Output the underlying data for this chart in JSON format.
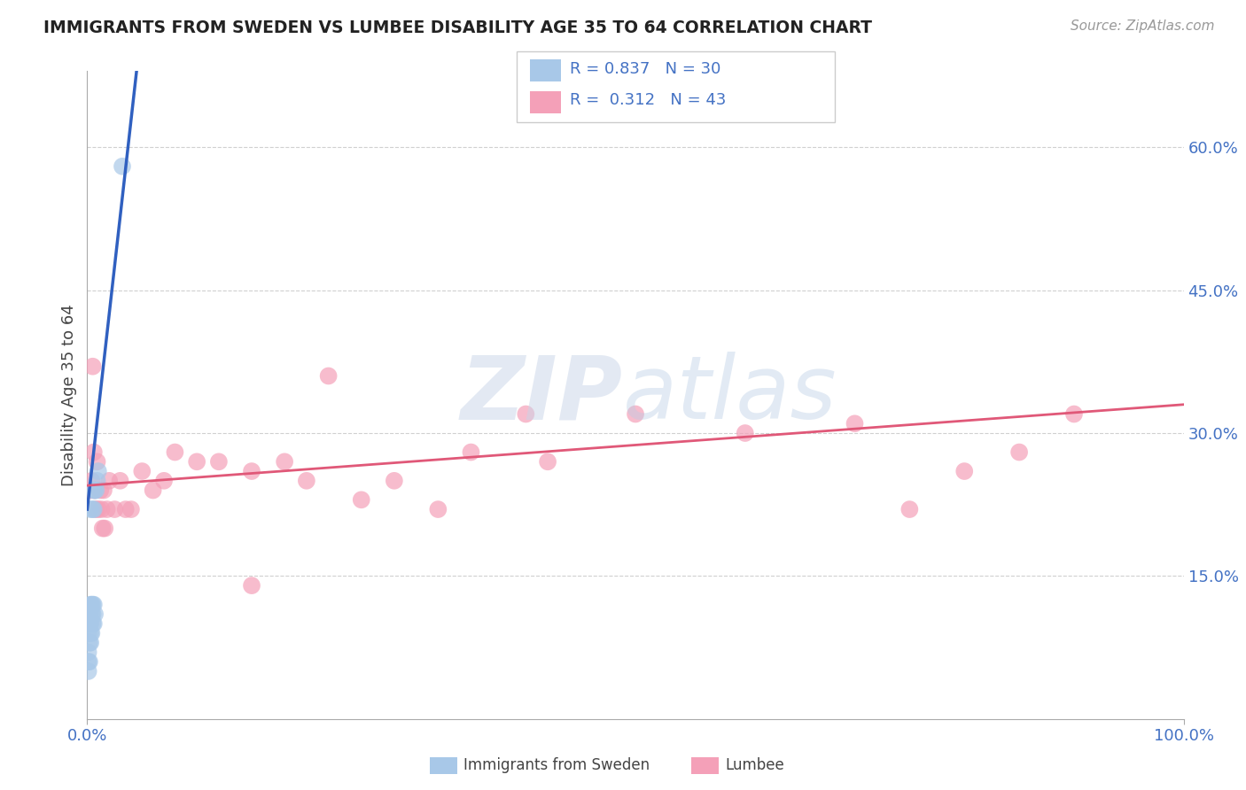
{
  "title": "IMMIGRANTS FROM SWEDEN VS LUMBEE DISABILITY AGE 35 TO 64 CORRELATION CHART",
  "source": "Source: ZipAtlas.com",
  "ylabel": "Disability Age 35 to 64",
  "ytick_labels": [
    "15.0%",
    "30.0%",
    "45.0%",
    "60.0%"
  ],
  "ytick_values": [
    0.15,
    0.3,
    0.45,
    0.6
  ],
  "xlim": [
    0.0,
    1.0
  ],
  "ylim": [
    0.0,
    0.68
  ],
  "sweden_color": "#a8c8e8",
  "lumbee_color": "#f4a0b8",
  "sweden_line_color": "#3060c0",
  "lumbee_line_color": "#e05878",
  "background_color": "#ffffff",
  "grid_color": "#d0d0d0",
  "sweden_scatter_x": [
    0.001,
    0.001,
    0.001,
    0.001,
    0.002,
    0.002,
    0.002,
    0.002,
    0.003,
    0.003,
    0.003,
    0.003,
    0.003,
    0.004,
    0.004,
    0.004,
    0.005,
    0.005,
    0.005,
    0.005,
    0.006,
    0.006,
    0.006,
    0.006,
    0.007,
    0.007,
    0.008,
    0.009,
    0.01,
    0.032
  ],
  "sweden_scatter_y": [
    0.05,
    0.06,
    0.07,
    0.09,
    0.06,
    0.08,
    0.1,
    0.11,
    0.08,
    0.09,
    0.1,
    0.12,
    0.22,
    0.09,
    0.11,
    0.12,
    0.1,
    0.11,
    0.12,
    0.22,
    0.1,
    0.12,
    0.22,
    0.24,
    0.11,
    0.24,
    0.24,
    0.25,
    0.26,
    0.58
  ],
  "lumbee_scatter_x": [
    0.003,
    0.004,
    0.005,
    0.006,
    0.007,
    0.008,
    0.009,
    0.01,
    0.012,
    0.013,
    0.014,
    0.015,
    0.016,
    0.018,
    0.02,
    0.025,
    0.03,
    0.035,
    0.04,
    0.05,
    0.06,
    0.07,
    0.08,
    0.1,
    0.12,
    0.15,
    0.18,
    0.22,
    0.28,
    0.35,
    0.42,
    0.5,
    0.6,
    0.7,
    0.75,
    0.8,
    0.85,
    0.9,
    0.15,
    0.2,
    0.25,
    0.32,
    0.4
  ],
  "lumbee_scatter_y": [
    0.24,
    0.25,
    0.37,
    0.28,
    0.24,
    0.22,
    0.27,
    0.22,
    0.24,
    0.22,
    0.2,
    0.24,
    0.2,
    0.22,
    0.25,
    0.22,
    0.25,
    0.22,
    0.22,
    0.26,
    0.24,
    0.25,
    0.28,
    0.27,
    0.27,
    0.26,
    0.27,
    0.36,
    0.25,
    0.28,
    0.27,
    0.32,
    0.3,
    0.31,
    0.22,
    0.26,
    0.28,
    0.32,
    0.14,
    0.25,
    0.23,
    0.22,
    0.32
  ],
  "sweden_line_x0": 0.0,
  "sweden_line_x1": 0.045,
  "sweden_line_y0": 0.22,
  "sweden_line_y1": 0.68,
  "lumbee_line_x0": 0.0,
  "lumbee_line_x1": 1.0,
  "lumbee_line_y0": 0.245,
  "lumbee_line_y1": 0.33
}
